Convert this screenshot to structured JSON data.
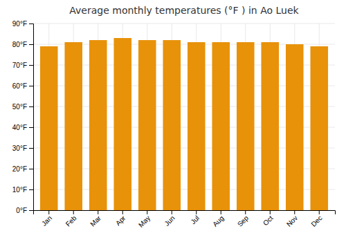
{
  "chart_data": {
    "type": "bar",
    "title": "Average monthly temperatures (°F ) in Ao Luek",
    "categories": [
      "Jan",
      "Feb",
      "Mar",
      "Apr",
      "May",
      "Jun",
      "Jul",
      "Aug",
      "Sep",
      "Oct",
      "Nov",
      "Dec"
    ],
    "values": [
      79,
      81,
      82,
      83,
      82,
      82,
      81,
      81,
      81,
      81,
      80,
      79
    ],
    "color": "#E8920A",
    "ylim": [
      0,
      90
    ],
    "yticks": [
      {
        "value": 0,
        "label": "0°F"
      },
      {
        "value": 10,
        "label": "10°F"
      },
      {
        "value": 20,
        "label": "20°F"
      },
      {
        "value": 30,
        "label": "30°F"
      },
      {
        "value": 40,
        "label": "40°F"
      },
      {
        "value": 50,
        "label": "50°F"
      },
      {
        "value": 60,
        "label": "60°F"
      },
      {
        "value": 70,
        "label": "70°F"
      },
      {
        "value": 80,
        "label": "80°F"
      },
      {
        "value": 90,
        "label": "90°F"
      }
    ],
    "grid": true
  }
}
